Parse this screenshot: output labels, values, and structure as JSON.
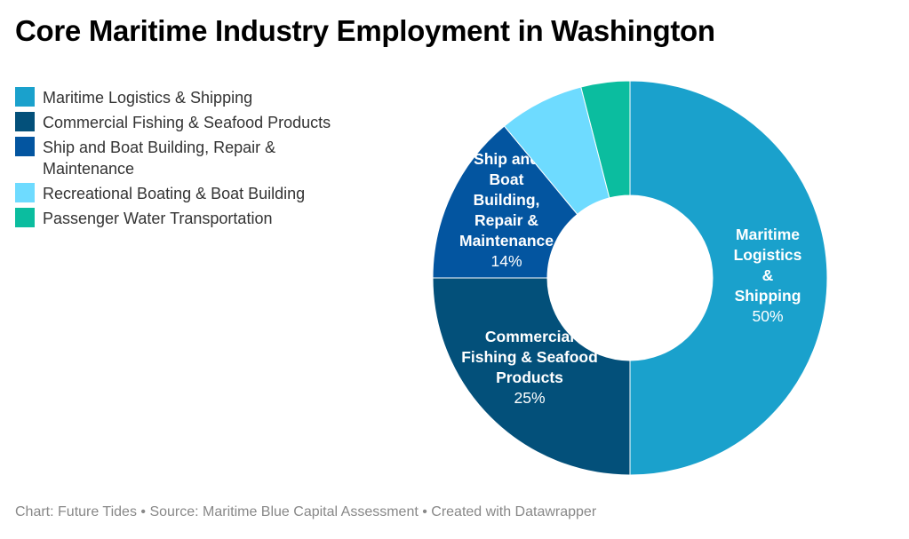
{
  "title": "Core Maritime Industry Employment in Washington",
  "footer": "Chart: Future Tides • Source: Maritime Blue Capital Assessment • Created with Datawrapper",
  "chart_data": {
    "type": "pie",
    "donut": true,
    "title": "Core Maritime Industry Employment in Washington",
    "legend_position": "left",
    "slices": [
      {
        "name": "Maritime Logistics & Shipping",
        "value": 50,
        "color": "#1aa1cc",
        "label_lines": [
          "Maritime",
          "Logistics",
          "&",
          "Shipping"
        ],
        "pct_label": "50%"
      },
      {
        "name": "Commercial Fishing & Seafood Products",
        "value": 25,
        "color": "#03507a",
        "label_lines": [
          "Commercial",
          "Fishing & Seafood",
          "Products"
        ],
        "pct_label": "25%"
      },
      {
        "name": "Ship and Boat Building, Repair & Maintenance",
        "value": 14,
        "color": "#0355a0",
        "label_lines": [
          "Ship and",
          "Boat",
          "Building,",
          "Repair &",
          "Maintenance"
        ],
        "pct_label": "14%"
      },
      {
        "name": "Recreational Boating & Boat Building",
        "value": 7,
        "color": "#6edbff"
      },
      {
        "name": "Passenger Water Transportation",
        "value": 4,
        "color": "#0bbd9f"
      }
    ],
    "legend": [
      "Maritime Logistics & Shipping",
      "Commercial Fishing & Seafood Products",
      "Ship and Boat Building, Repair & Maintenance",
      "Recreational Boating & Boat Building",
      "Passenger Water Transportation"
    ]
  }
}
